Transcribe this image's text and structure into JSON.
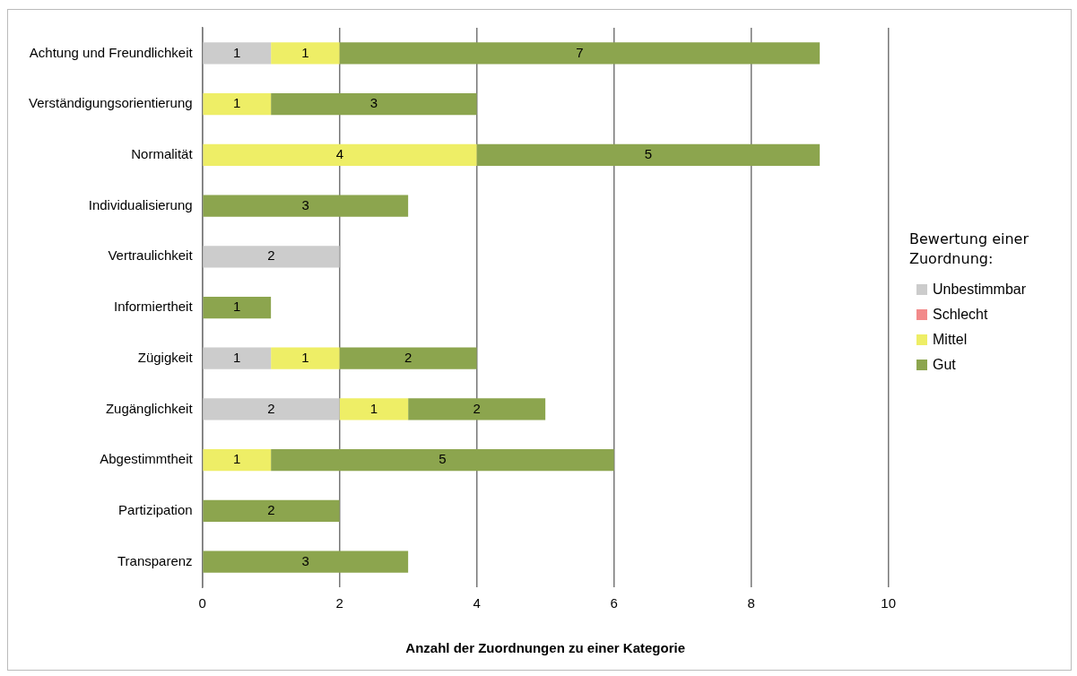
{
  "chart_data": {
    "type": "bar",
    "orientation": "horizontal",
    "stacked": true,
    "xlabel": "Anzahl der Zuordnungen zu einer Kategorie",
    "legend_title": "Bewertung einer Zuordnung:",
    "legend": "right",
    "grid": "x",
    "data_labels": true,
    "categories": [
      "Achtung und Freundlichkeit",
      "Verständigungsorientierung",
      "Normalität",
      "Individualisierung",
      "Vertraulichkeit",
      "Informiertheit",
      "Zügigkeit",
      "Zugänglichkeit",
      "Abgestimmtheit",
      "Partizipation",
      "Transparenz"
    ],
    "xlim": [
      0,
      10
    ],
    "xticks": [
      0,
      2,
      4,
      6,
      8,
      10
    ],
    "series": [
      {
        "name": "Unbestimmbar",
        "color": "#cccccc",
        "values": [
          1,
          null,
          null,
          null,
          2,
          null,
          1,
          2,
          null,
          null,
          null
        ]
      },
      {
        "name": "Schlecht",
        "color": "#f28a8a",
        "values": [
          null,
          null,
          null,
          null,
          null,
          null,
          null,
          null,
          null,
          null,
          null
        ]
      },
      {
        "name": "Mittel",
        "color": "#eeee66",
        "values": [
          1,
          1,
          4,
          null,
          null,
          null,
          1,
          1,
          1,
          null,
          null
        ]
      },
      {
        "name": "Gut",
        "color": "#8ca54e",
        "values": [
          7,
          3,
          5,
          3,
          null,
          1,
          2,
          2,
          5,
          2,
          3
        ]
      }
    ]
  }
}
